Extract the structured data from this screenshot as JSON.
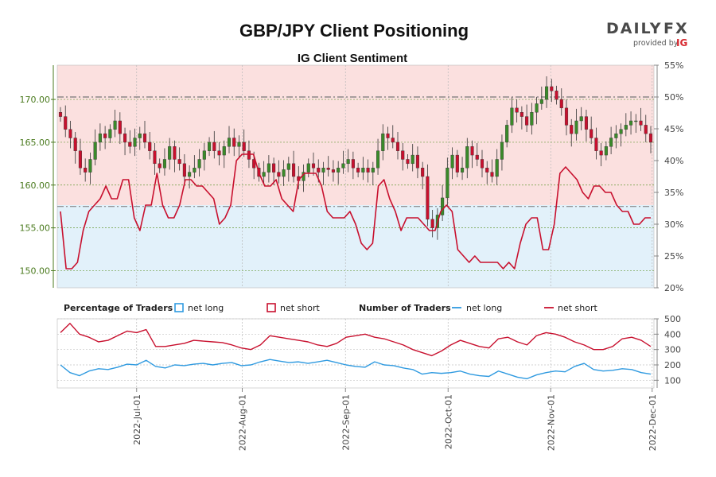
{
  "header": {
    "title": "GBP/JPY Client Positioning",
    "subtitle": "IG Client Sentiment"
  },
  "logo": {
    "brand_left": "DAILY",
    "brand_right": "FX",
    "provided_by": "provided by",
    "ig": "IG",
    "accent_color": "#d7282f"
  },
  "legend": {
    "percentage_title": "Percentage of Traders",
    "number_title": "Number of Traders",
    "net_long": "net long",
    "net_short": "net short"
  },
  "colors": {
    "long": "#2f9ae0",
    "short": "#c8102e",
    "candle_up": "#3a8a2a",
    "candle_down": "#c8102e",
    "short_zone": "#fbe0df",
    "long_zone": "#e2f1fa",
    "price_axis": "#4a7a1e"
  },
  "chart_data": [
    {
      "type": "candlestick+line",
      "price_axis": {
        "ticks": [
          "150.00",
          "155.00",
          "160.00",
          "165.00",
          "170.00"
        ],
        "range": [
          148,
          174
        ]
      },
      "pct_axis": {
        "ticks": [
          "20%",
          "25%",
          "30%",
          "35%",
          "40%",
          "45%",
          "50%",
          "55%"
        ],
        "range": [
          20,
          55
        ]
      },
      "reference_lines": {
        "pct_50": 50,
        "price_level": 157.5
      },
      "date_ticks": [
        "2022-Jul-01",
        "2022-Aug-01",
        "2022-Sep-01",
        "2022-Oct-01",
        "2022-Nov-01",
        "2022-Dec-01"
      ],
      "candles_sample_closes": [
        168.0,
        166.5,
        165.5,
        164.0,
        162.0,
        161.5,
        163.0,
        165.0,
        166.0,
        165.5,
        166.5,
        167.5,
        166.0,
        165.0,
        164.5,
        165.5,
        166.0,
        165.0,
        164.0,
        162.5,
        162.0,
        163.0,
        164.5,
        163.0,
        162.5,
        161.0,
        161.5,
        162.0,
        163.0,
        164.0,
        165.0,
        164.0,
        163.5,
        164.5,
        165.5,
        164.5,
        165.0,
        164.0,
        163.0,
        162.0,
        161.0,
        161.5,
        162.5,
        161.5,
        161.0,
        161.8,
        162.5,
        161.0,
        160.5,
        161.5,
        162.5,
        162.0,
        161.5,
        162.0,
        161.8,
        161.5,
        162.0,
        162.5,
        163.0,
        162.0,
        161.5,
        162.0,
        161.5,
        162.0,
        164.0,
        166.0,
        165.5,
        165.0,
        164.0,
        163.0,
        162.5,
        163.5,
        162.0,
        161.0,
        156.0,
        155.0,
        156.5,
        158.5,
        162.0,
        163.5,
        161.5,
        162.0,
        164.5,
        163.5,
        163.0,
        162.0,
        161.5,
        161.0,
        163.0,
        165.0,
        167.0,
        169.0,
        168.5,
        168.0,
        167.0,
        168.5,
        169.5,
        170.0,
        171.5,
        171.0,
        170.0,
        169.0,
        167.0,
        166.0,
        167.5,
        168.0,
        166.5,
        165.5,
        164.0,
        163.5,
        164.5,
        165.5,
        166.0,
        166.5,
        167.0,
        167.5,
        167.5,
        167.0,
        166.0,
        165.0
      ],
      "net_long_pct_sample": [
        32,
        23,
        23,
        24,
        29,
        32,
        33,
        34,
        36,
        34,
        34,
        37,
        37,
        31,
        29,
        33,
        33,
        38,
        33,
        31,
        31,
        33,
        37,
        37,
        36,
        36,
        35,
        34,
        30,
        31,
        33,
        40,
        41,
        41,
        41,
        38,
        36,
        36,
        37,
        34,
        33,
        32,
        37,
        38,
        38,
        38,
        36,
        32,
        31,
        31,
        31,
        32,
        30,
        27,
        26,
        27,
        36,
        37,
        34,
        32,
        29,
        31,
        31,
        31,
        30,
        29,
        29,
        32,
        33,
        32,
        26,
        25,
        24,
        25,
        24,
        24,
        24,
        24,
        23,
        24,
        23,
        27,
        30,
        31,
        31,
        26,
        26,
        30,
        38,
        39,
        38,
        37,
        35,
        34,
        36,
        36,
        35,
        35,
        33,
        32,
        32,
        30,
        30,
        31,
        31
      ],
      "series": [
        {
          "name": "net long"
        },
        {
          "name": "net short"
        }
      ]
    },
    {
      "type": "line",
      "y_axis": {
        "ticks": [
          "100",
          "200",
          "300",
          "400",
          "500"
        ],
        "range": [
          50,
          500
        ]
      },
      "series": [
        {
          "name": "net long",
          "values": [
            200,
            150,
            130,
            160,
            175,
            170,
            185,
            205,
            200,
            230,
            190,
            180,
            200,
            195,
            205,
            210,
            200,
            210,
            215,
            195,
            200,
            220,
            235,
            225,
            215,
            220,
            210,
            220,
            230,
            215,
            200,
            190,
            185,
            220,
            200,
            195,
            180,
            170,
            140,
            150,
            145,
            150,
            160,
            140,
            130,
            125,
            160,
            140,
            120,
            110,
            135,
            150,
            160,
            155,
            190,
            210,
            170,
            160,
            165,
            175,
            170,
            150,
            140
          ]
        },
        {
          "name": "net short",
          "values": [
            410,
            470,
            400,
            380,
            350,
            360,
            390,
            420,
            410,
            430,
            320,
            320,
            330,
            340,
            360,
            355,
            350,
            345,
            330,
            310,
            300,
            330,
            390,
            380,
            370,
            360,
            350,
            330,
            320,
            340,
            380,
            390,
            400,
            380,
            370,
            350,
            330,
            300,
            280,
            260,
            290,
            330,
            360,
            340,
            320,
            310,
            370,
            380,
            350,
            330,
            390,
            410,
            400,
            380,
            350,
            330,
            300,
            300,
            320,
            370,
            380,
            360,
            320
          ]
        }
      ]
    }
  ]
}
